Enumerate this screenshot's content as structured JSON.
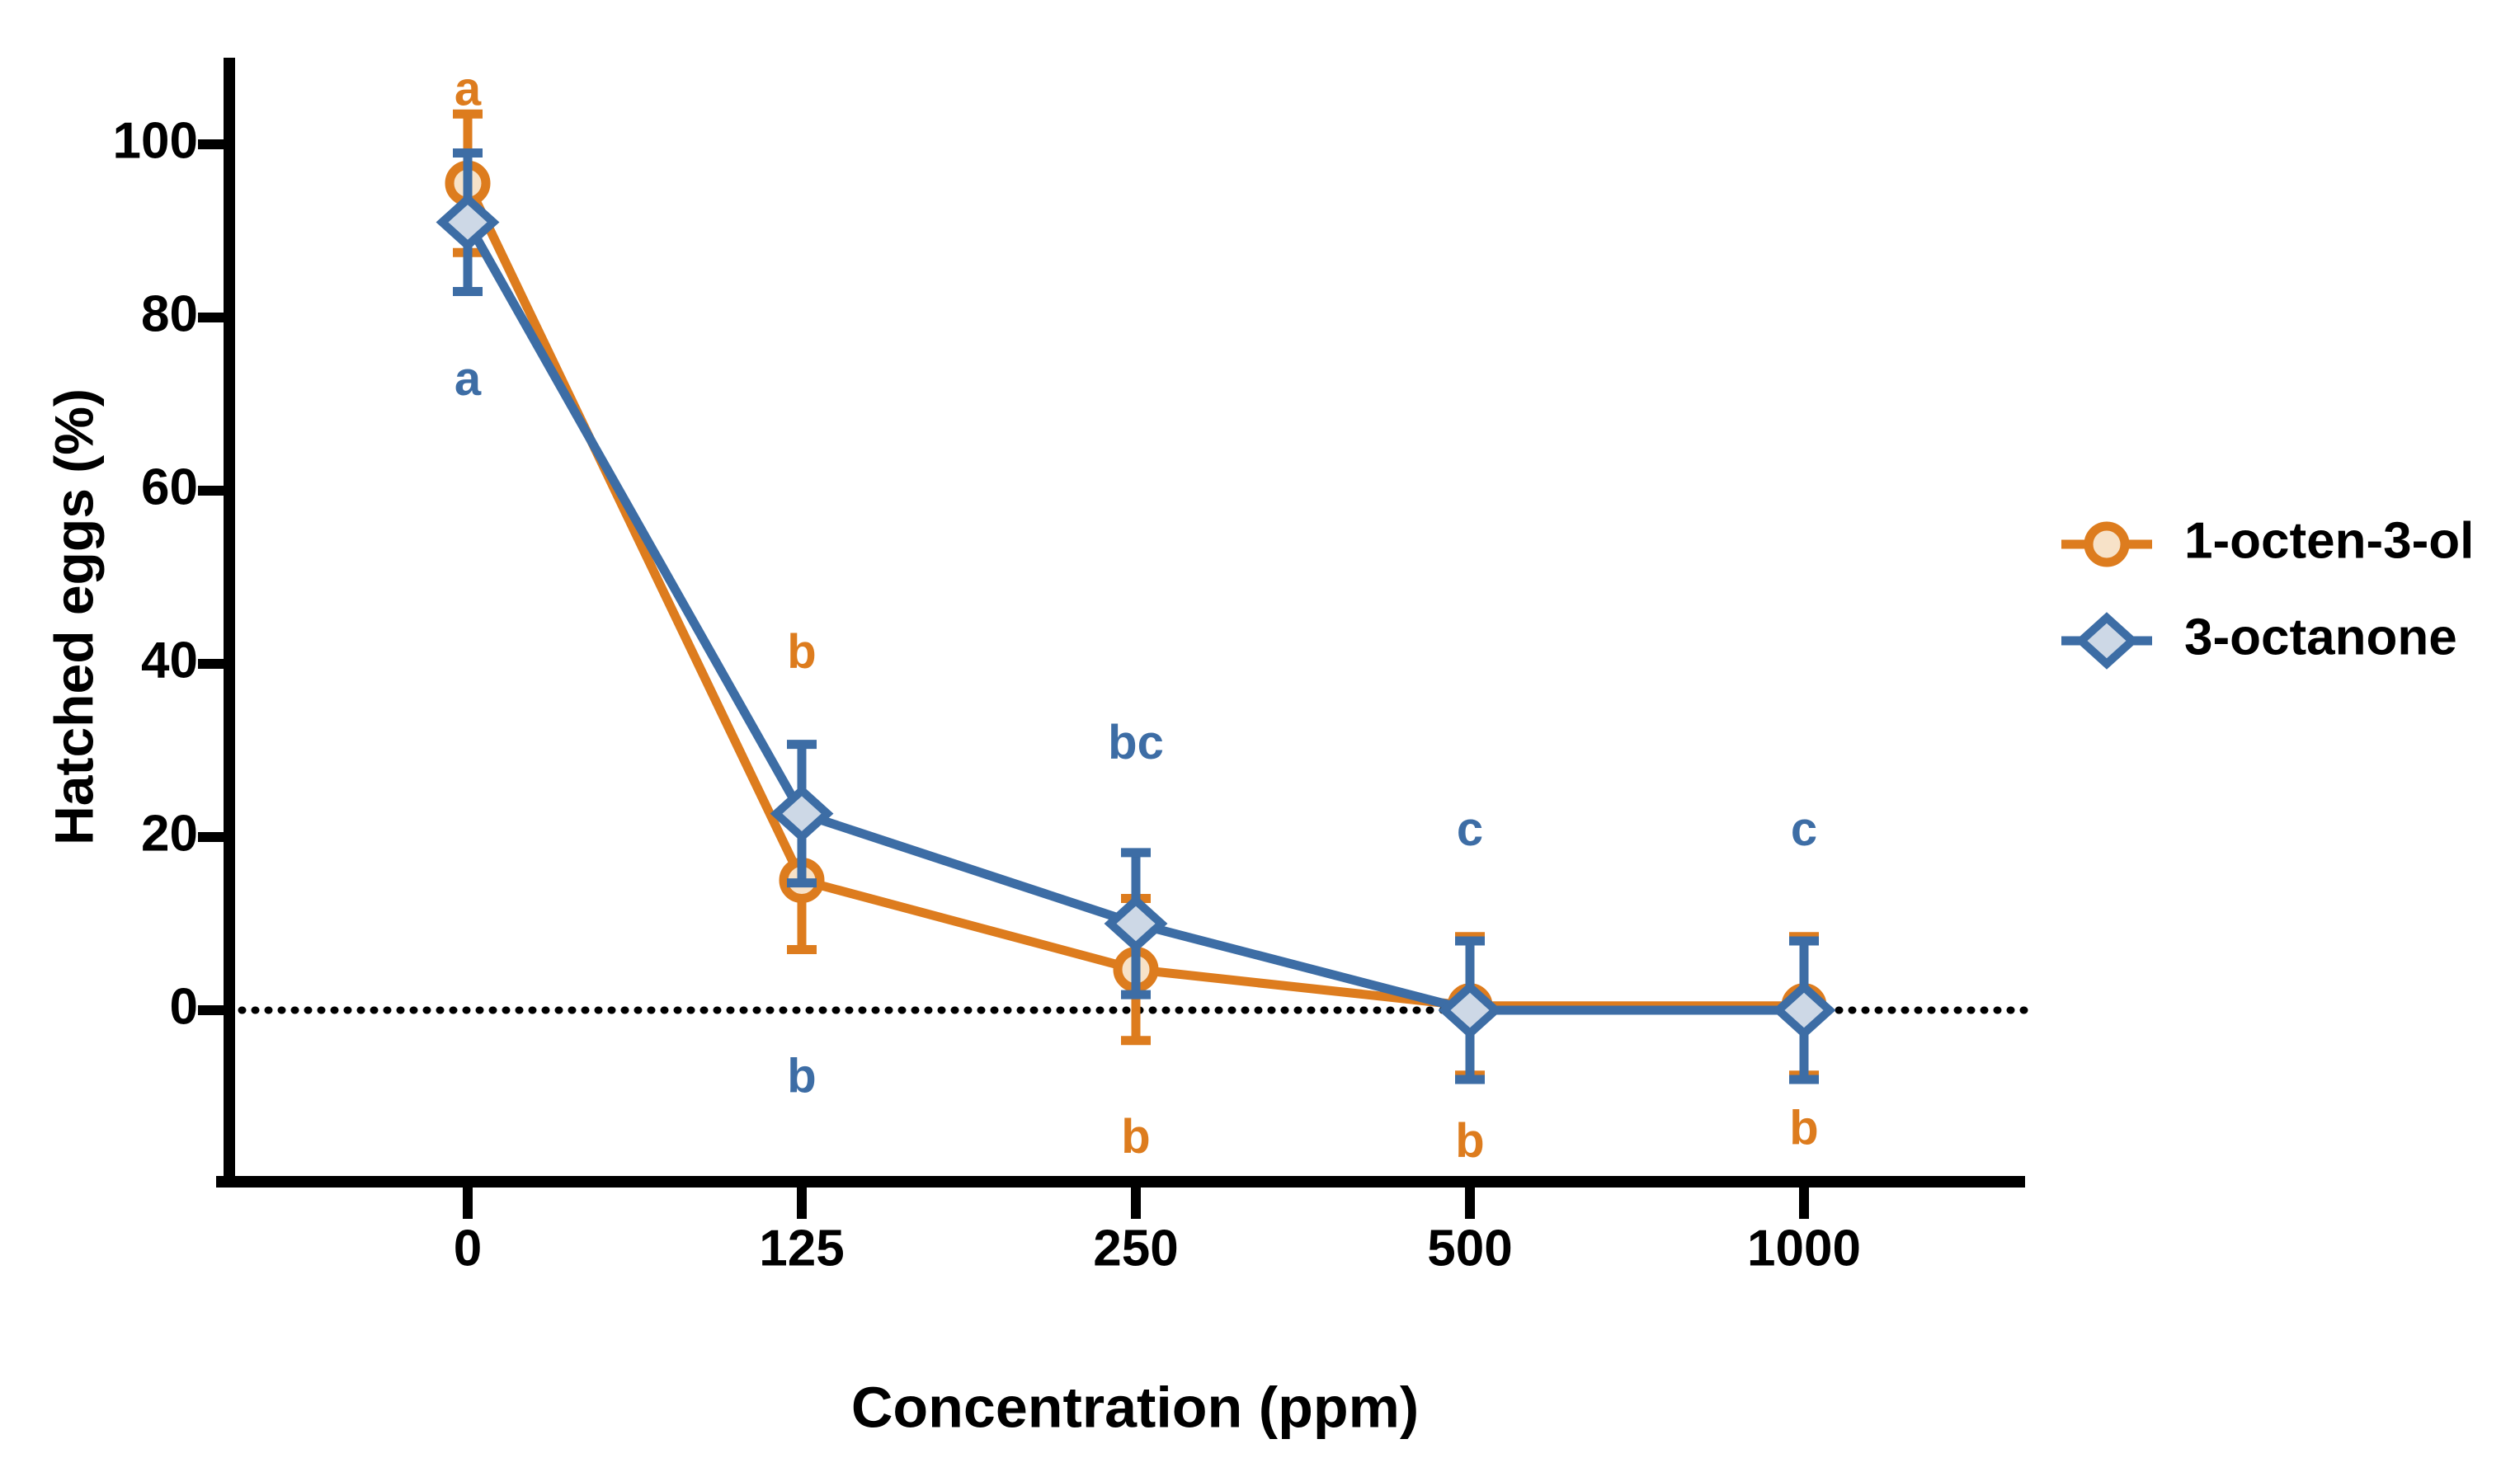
{
  "chart_data": {
    "type": "line",
    "title": "",
    "xlabel": "Concentration (ppm)",
    "ylabel": "Hatched eggs (%)",
    "categories": [
      "0",
      "125",
      "250",
      "500",
      "1000"
    ],
    "y_ticks": [
      0,
      20,
      40,
      60,
      80,
      100
    ],
    "ylim": [
      -20,
      110
    ],
    "grid": "off",
    "reference_line": {
      "y_value": 0,
      "style": "dotted",
      "color": "#000000"
    },
    "legend_position": "right-middle",
    "series": [
      {
        "name": "1-octen-3-ol",
        "marker": "circle",
        "color": "#DD7C1E",
        "fill": "#F7E2C8",
        "values": [
          95.5,
          15,
          4.7,
          0.5,
          0.5
        ],
        "errors": [
          8,
          8,
          8.2,
          8,
          8
        ],
        "letters": [
          {
            "text": "a",
            "placement": "above",
            "y_value": 106
          },
          {
            "text": "b",
            "placement": "above",
            "y_value": 41
          },
          {
            "text": "b",
            "placement": "below",
            "y_value": -15
          },
          {
            "text": "b",
            "placement": "below",
            "y_value": -15.5
          },
          {
            "text": "b",
            "placement": "below",
            "y_value": -14
          }
        ]
      },
      {
        "name": "3-octanone",
        "marker": "diamond",
        "color": "#3D6DA5",
        "fill": "#CDD8E6",
        "values": [
          91,
          22.7,
          10,
          0,
          0
        ],
        "errors": [
          8,
          8,
          8.2,
          8,
          8
        ],
        "letters": [
          {
            "text": "a",
            "placement": "below",
            "y_value": 72.5
          },
          {
            "text": "b",
            "placement": "below",
            "y_value": -8
          },
          {
            "text": "bc",
            "placement": "above",
            "y_value": 30.5
          },
          {
            "text": "c",
            "placement": "above",
            "y_value": 20.5
          },
          {
            "text": "c",
            "placement": "above",
            "y_value": 20.5
          }
        ]
      }
    ]
  }
}
